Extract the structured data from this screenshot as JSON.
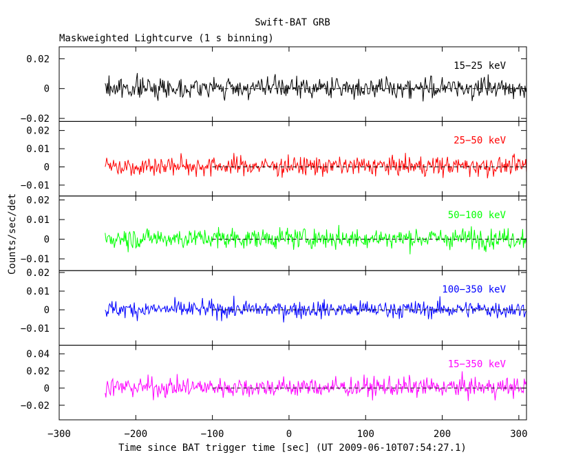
{
  "chart_data": {
    "type": "line",
    "title": "Swift-BAT GRB",
    "subtitle": "Maskweighted Lightcurve (1 s binning)",
    "xlabel": "Time since BAT trigger time [sec] (UT 2009-06-10T07:54:27.1)",
    "ylabel": "Counts/sec/det",
    "xlim": [
      -300,
      310
    ],
    "x_ticks": [
      -300,
      -200,
      -100,
      0,
      100,
      200,
      300
    ],
    "x_tick_labels": [
      "−300",
      "−200",
      "−100",
      "0",
      "100",
      "200",
      "300"
    ],
    "data_x_start": -240,
    "data_x_end": 310,
    "x_step": 1,
    "grid": false,
    "panels": [
      {
        "band": "15−25 keV",
        "color": "#000000",
        "ylim": [
          -0.022,
          0.028
        ],
        "y_ticks": [
          -0.02,
          0,
          0.02
        ],
        "y_tick_labels": [
          "−0.02",
          "0",
          "0.02"
        ],
        "noise_sigma": 0.0062,
        "baseline": 0.0005
      },
      {
        "band": "25−50 keV",
        "color": "#ff0000",
        "ylim": [
          -0.016,
          0.025
        ],
        "y_ticks": [
          -0.01,
          0,
          0.01,
          0.02
        ],
        "y_tick_labels": [
          "−0.01",
          "0",
          "0.01",
          "0.02"
        ],
        "noise_sigma": 0.0048,
        "baseline": 0.0005
      },
      {
        "band": "50−100 keV",
        "color": "#00ff00",
        "ylim": [
          -0.016,
          0.022
        ],
        "y_ticks": [
          -0.01,
          0,
          0.01,
          0.02
        ],
        "y_tick_labels": [
          "−0.01",
          "0",
          "0.01",
          "0.02"
        ],
        "noise_sigma": 0.0047,
        "baseline": 0.0005
      },
      {
        "band": "100−350 keV",
        "color": "#0000ff",
        "ylim": [
          -0.019,
          0.021
        ],
        "y_ticks": [
          -0.01,
          0,
          0.01,
          0.02
        ],
        "y_tick_labels": [
          "−0.01",
          "0",
          "0.01",
          "0.02"
        ],
        "noise_sigma": 0.0042,
        "baseline": 0.0002
      },
      {
        "band": "15−350 keV",
        "color": "#ff00ff",
        "ylim": [
          -0.037,
          0.05
        ],
        "y_ticks": [
          -0.02,
          0,
          0.02,
          0.04
        ],
        "y_tick_labels": [
          "−0.02",
          "0",
          "0.02",
          "0.04"
        ],
        "noise_sigma": 0.0105,
        "baseline": 0.001
      }
    ]
  }
}
